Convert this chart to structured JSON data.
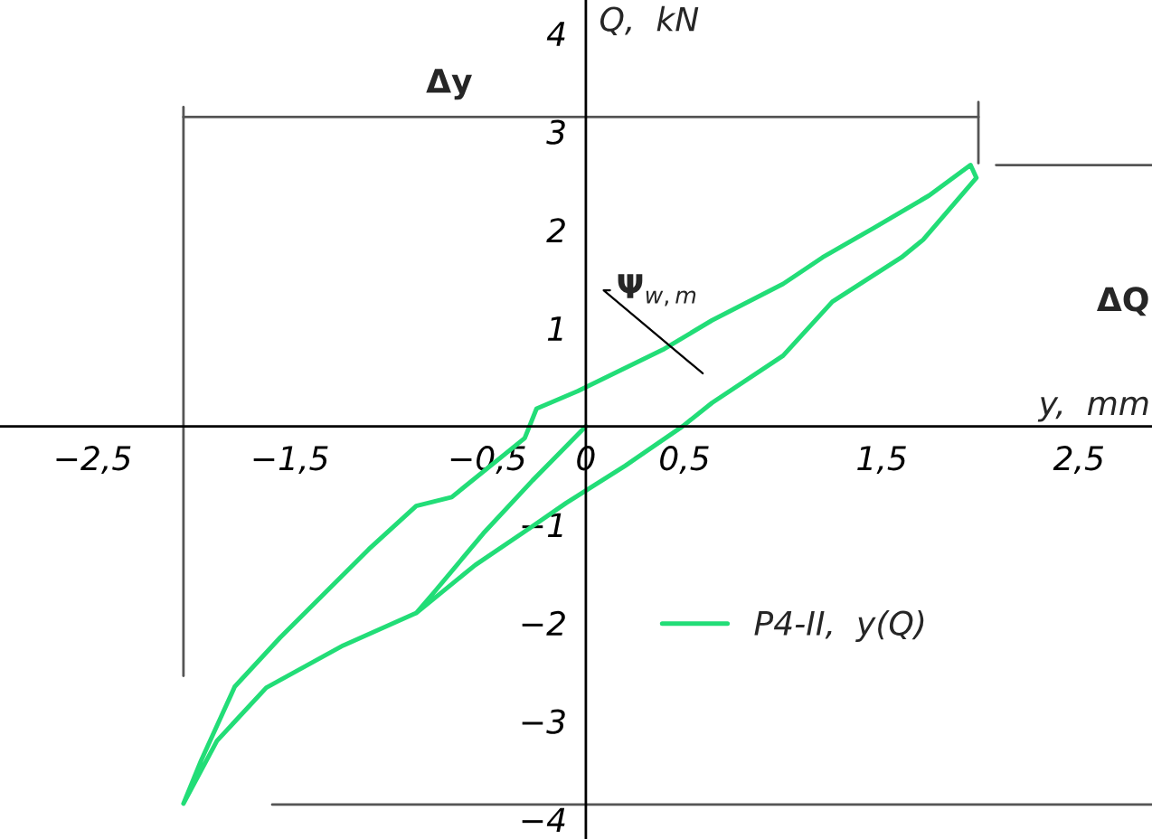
{
  "chart_data": {
    "type": "line",
    "xlabel": "y,  mm",
    "ylabel": "Q,  kN",
    "x": [
      0,
      -0.27,
      -0.52,
      -0.77,
      -0.86,
      -1.23,
      -1.62,
      -1.87,
      -2.04,
      -1.95,
      -1.78,
      -1.55,
      -1.32,
      -1.1,
      -0.86,
      -0.68,
      -0.31,
      -0.25,
      -0.04,
      0.39,
      0.64,
      1.0,
      1.2,
      1.46,
      1.74,
      1.95,
      1.98,
      1.71,
      1.6,
      1.25,
      1.0,
      0.64,
      0.49,
      0.2,
      -0.1,
      -0.28,
      -0.56,
      -0.86
    ],
    "series": [
      {
        "name": "P4-II,  y(Q)",
        "color": "#22dd77",
        "values": [
          0,
          -0.55,
          -1.09,
          -1.69,
          -1.9,
          -2.23,
          -2.66,
          -3.2,
          -3.84,
          -3.4,
          -2.65,
          -2.15,
          -1.69,
          -1.25,
          -0.81,
          -0.72,
          -0.12,
          0.18,
          0.36,
          0.78,
          1.08,
          1.45,
          1.72,
          2.02,
          2.35,
          2.66,
          2.53,
          1.9,
          1.72,
          1.27,
          0.72,
          0.24,
          0.0,
          -0.4,
          -0.78,
          -1.03,
          -1.41,
          -1.9
        ]
      }
    ],
    "xlim": [
      -2.97,
      2.87
    ],
    "ylim": [
      -4.2,
      4.34
    ],
    "xticks": [
      {
        "value": -2.5,
        "label": "−2,5"
      },
      {
        "value": -1.5,
        "label": "−1,5"
      },
      {
        "value": -0.5,
        "label": "−0,5"
      },
      0,
      {
        "value": 0.5,
        "label": "0,5"
      },
      {
        "value": 1.5,
        "label": "1,5"
      },
      {
        "value": 2.5,
        "label": "2,5"
      }
    ],
    "yticks": [
      {
        "value": -4,
        "label": "−4"
      },
      {
        "value": -3,
        "label": "−3"
      },
      {
        "value": -2,
        "label": "−2"
      },
      {
        "value": -1,
        "label": "−1"
      },
      1,
      2,
      3,
      4
    ],
    "annotations": [
      "Ψ$_{w,m}$",
      "Δy",
      "ΔQ"
    ],
    "ref_lines": [
      {
        "axis": "y",
        "value": 3.15,
        "color": "#555555"
      },
      {
        "axis": "x",
        "value": -2.04,
        "color": "#555555"
      },
      {
        "axis": "y",
        "value": 2.66,
        "color": "#555555"
      },
      {
        "axis": "y",
        "value": -3.85,
        "color": "#555555"
      }
    ],
    "legend": "lower right",
    "grid": false,
    "marker": "none",
    "line_style": "solid"
  }
}
